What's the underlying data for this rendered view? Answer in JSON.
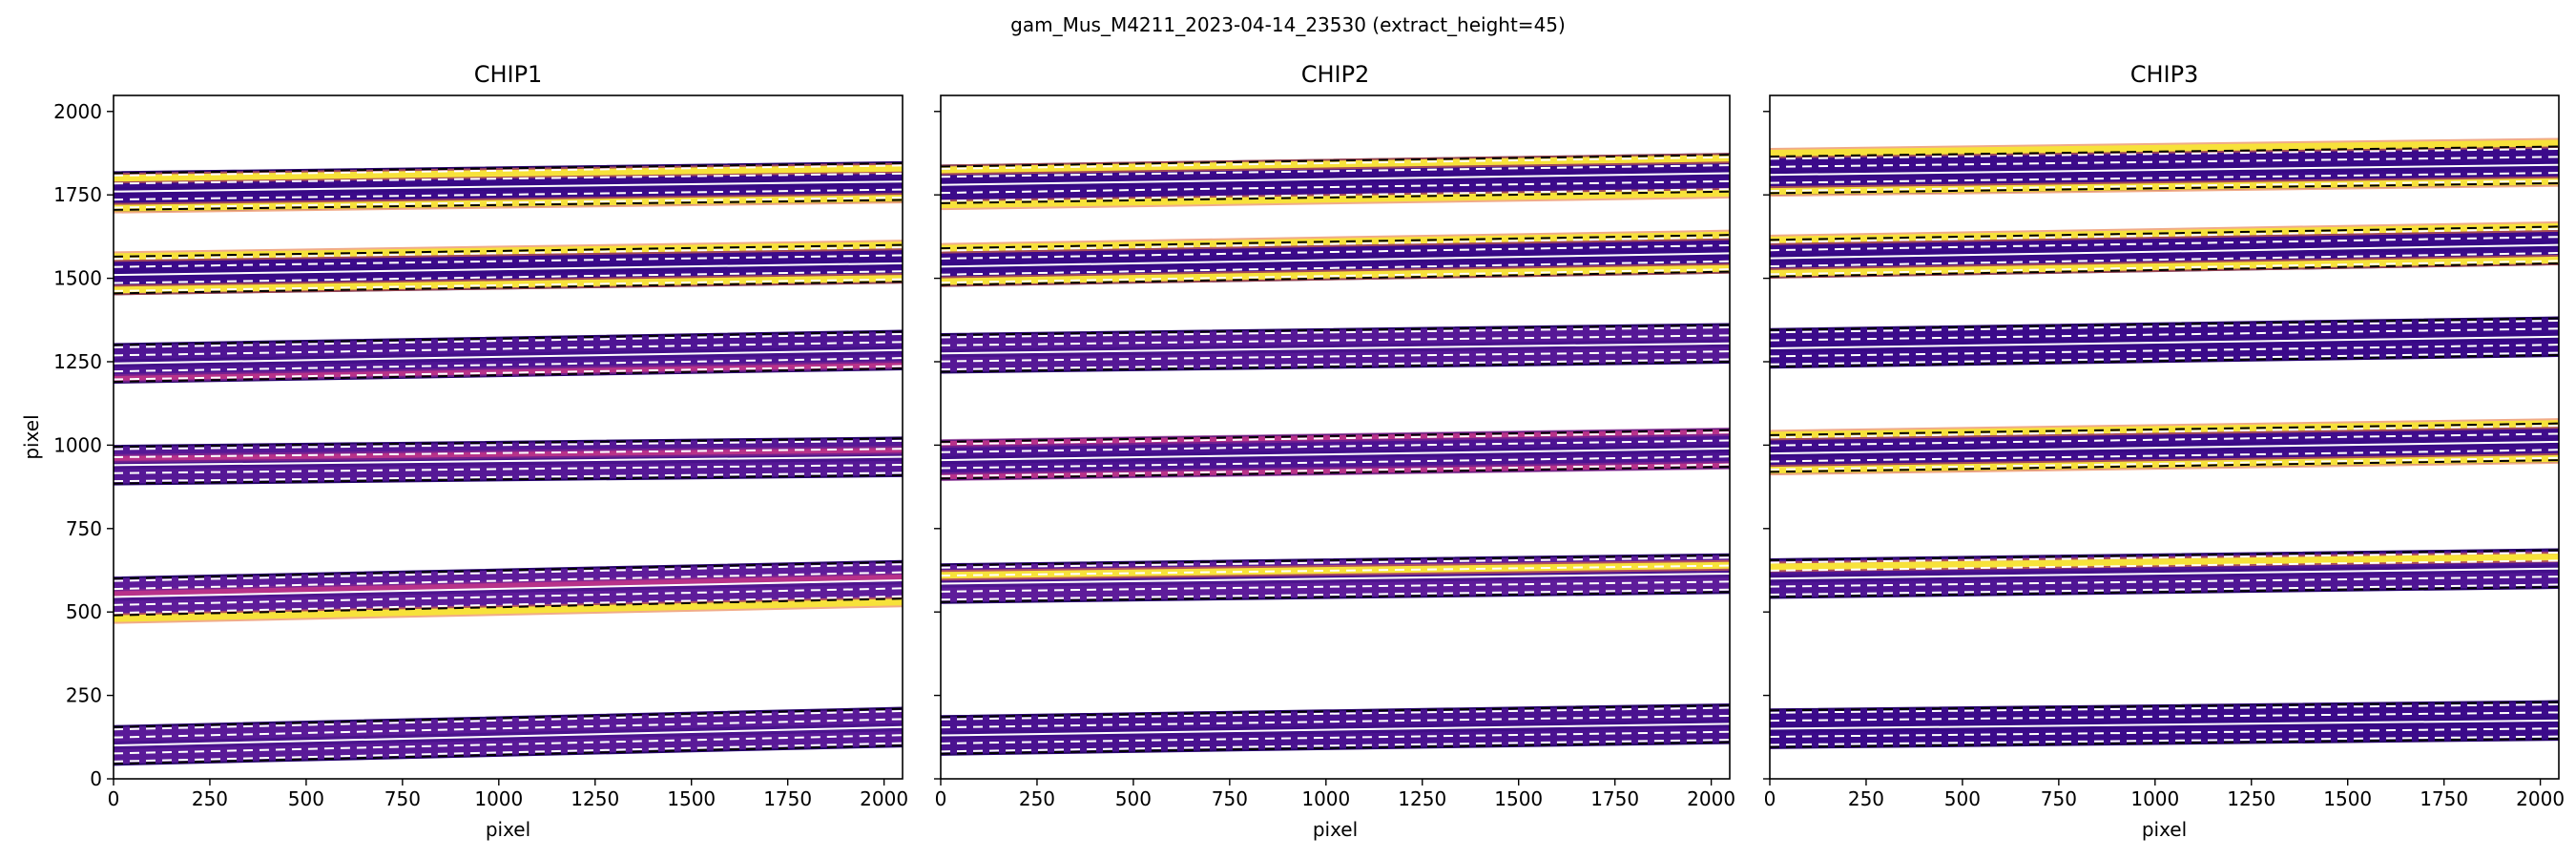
{
  "figure": {
    "suptitle": "gam_Mus_M4211_2023-04-14_23530  (extract_height=45)"
  },
  "chart_data": {
    "type": "heatmap",
    "xlim": [
      0,
      2048
    ],
    "ylim": [
      0,
      2048
    ],
    "xticks": [
      0,
      250,
      500,
      750,
      1000,
      1250,
      1500,
      1750,
      2000
    ],
    "yticks": [
      0,
      250,
      500,
      750,
      1000,
      1250,
      1500,
      1750,
      2000
    ],
    "xlabel": "pixel",
    "ylabel": "pixel",
    "colors": {
      "order_fill": "#3b0a8a",
      "order_edge": "#2a0670",
      "bright_line": "#f7e23a",
      "bright_core": "#fdd86a",
      "mid_line": "#b83289",
      "extraction_line": "#ffffff",
      "dashed_line": "#000000"
    },
    "panels": [
      {
        "title": "CHIP1",
        "orders": [
          {
            "y_left": 100,
            "y_right": 155,
            "tint": "#5a1a98",
            "lines": []
          },
          {
            "y_left": 545,
            "y_right": 595,
            "tint": "#5e1c9a",
            "lines": [
              {
                "offset": -65,
                "kind": "bright"
              },
              {
                "offset": 10,
                "kind": "mid"
              }
            ]
          },
          {
            "y_left": 940,
            "y_right": 965,
            "tint": "#561896",
            "lines": [
              {
                "offset": 20,
                "kind": "mid"
              }
            ]
          },
          {
            "y_left": 1245,
            "y_right": 1285,
            "tint": "#4f1594",
            "lines": [
              {
                "offset": -45,
                "kind": "mid"
              }
            ]
          },
          {
            "y_left": 1510,
            "y_right": 1545,
            "tint": "#3b0a8a",
            "lines": [
              {
                "offset": -45,
                "kind": "bright"
              },
              {
                "offset": 55,
                "kind": "bright"
              }
            ]
          },
          {
            "y_left": 1760,
            "y_right": 1790,
            "tint": "#3b0a8a",
            "lines": [
              {
                "offset": -50,
                "kind": "bright"
              },
              {
                "offset": 40,
                "kind": "bright"
              }
            ]
          }
        ]
      },
      {
        "title": "CHIP2",
        "orders": [
          {
            "y_left": 130,
            "y_right": 165,
            "tint": "#4a1290",
            "lines": []
          },
          {
            "y_left": 585,
            "y_right": 615,
            "tint": "#5e1c9a",
            "lines": [
              {
                "offset": 25,
                "kind": "bright"
              }
            ]
          },
          {
            "y_left": 955,
            "y_right": 990,
            "tint": "#4c1392",
            "lines": [
              {
                "offset": -50,
                "kind": "mid"
              },
              {
                "offset": 50,
                "kind": "mid"
              }
            ]
          },
          {
            "y_left": 1275,
            "y_right": 1305,
            "tint": "#561896",
            "lines": []
          },
          {
            "y_left": 1535,
            "y_right": 1575,
            "tint": "#3b0a8a",
            "lines": [
              {
                "offset": -45,
                "kind": "bright"
              },
              {
                "offset": 55,
                "kind": "bright"
              }
            ]
          },
          {
            "y_left": 1780,
            "y_right": 1815,
            "tint": "#3b0a8a",
            "lines": [
              {
                "offset": -60,
                "kind": "bright"
              },
              {
                "offset": 45,
                "kind": "bright"
              }
            ]
          }
        ]
      },
      {
        "title": "CHIP3",
        "orders": [
          {
            "y_left": 150,
            "y_right": 175,
            "tint": "#3b0a8a",
            "lines": []
          },
          {
            "y_left": 600,
            "y_right": 630,
            "tint": "#4f1594",
            "lines": [
              {
                "offset": 35,
                "kind": "bright"
              }
            ]
          },
          {
            "y_left": 975,
            "y_right": 1010,
            "tint": "#3f0c8c",
            "lines": [
              {
                "offset": -50,
                "kind": "bright"
              },
              {
                "offset": 55,
                "kind": "bright"
              }
            ]
          },
          {
            "y_left": 1290,
            "y_right": 1325,
            "tint": "#3b0a8a",
            "lines": []
          },
          {
            "y_left": 1560,
            "y_right": 1600,
            "tint": "#3b0a8a",
            "lines": [
              {
                "offset": -45,
                "kind": "bright"
              },
              {
                "offset": 55,
                "kind": "bright"
              }
            ]
          },
          {
            "y_left": 1810,
            "y_right": 1840,
            "tint": "#3b0a8a",
            "lines": [
              {
                "offset": -50,
                "kind": "bright"
              },
              {
                "offset": 65,
                "kind": "bright"
              }
            ]
          }
        ]
      }
    ]
  }
}
